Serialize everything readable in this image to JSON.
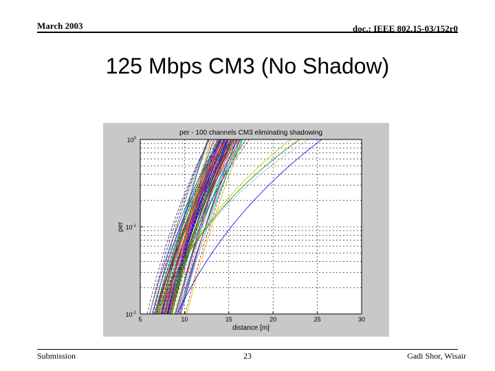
{
  "header": {
    "date": "March 2003",
    "doc_id": "doc.: IEEE 802.15-03/152r0"
  },
  "slide": {
    "title": "125 Mbps CM3 (No Shadow)"
  },
  "footer": {
    "left": "Submission",
    "page_number": "23",
    "author": "Gadi Shor, Wisair"
  },
  "colors": {
    "plot_bg": "#c8c8c8",
    "axes_bg": "#ffffff",
    "series_palette": [
      "#0000ff",
      "#008000",
      "#ff0000",
      "#00bfbf",
      "#bf00bf",
      "#bfbf00",
      "#404040"
    ]
  },
  "chart_data": {
    "type": "line",
    "title": "per - 100 channels CM3 eliminating shadowing",
    "xlabel": "distance [m]",
    "ylabel": "per",
    "x_scale": "linear",
    "y_scale": "log",
    "xlim": [
      5,
      30
    ],
    "ylim": [
      0.01,
      1
    ],
    "x_ticks": [
      "5",
      "10",
      "15",
      "20",
      "25",
      "30"
    ],
    "y_ticks": [
      {
        "base": "10",
        "exp": "0"
      },
      {
        "base": "10",
        "exp": "-1"
      },
      {
        "base": "10",
        "exp": "-2"
      }
    ],
    "grid": true,
    "num_channels": 100,
    "curve_model": "per = min(1, (distance / d_sat)^k), one curve per channel",
    "series_params": {
      "d_sat": [
        14.1,
        13.7,
        14.0,
        12.6,
        15.2,
        14.0,
        15.7,
        13.5,
        14.9,
        14.6,
        15.0,
        14.9,
        16.2,
        15.2,
        14.9,
        14.3,
        16.3,
        13.5,
        16.1,
        14.7,
        15.0,
        14.5,
        15.6,
        14.4,
        14.1,
        17.3,
        14.8,
        14.3,
        12.8,
        13.8,
        13.9,
        14.2,
        14.7,
        15.4,
        14.1,
        15.9,
        16.9,
        13.0,
        16.5,
        14.0,
        15.4,
        12.7,
        14.5,
        14.5,
        15.8,
        14.4,
        14.9,
        14.4,
        15.6,
        14.6,
        16.0,
        13.7,
        13.7,
        14.8,
        14.3,
        12.8,
        14.7,
        14.6,
        15.3,
        16.6,
        16.4,
        15.5,
        13.8,
        14.1,
        15.5,
        15.3,
        13.3,
        13.1,
        14.7,
        14.0,
        14.4,
        15.0,
        14.3,
        13.9,
        14.2,
        16.6,
        12.7,
        14.1,
        15.5,
        13.3,
        16.3,
        14.0,
        15.7,
        14.9,
        15.2,
        15.5,
        14.6,
        16.4,
        14.7,
        13.0,
        15.5,
        14.9,
        15.4,
        16.2,
        16.6,
        15.3,
        22.0,
        24.0,
        25.5,
        23.0
      ],
      "k": [
        7.6,
        6.8,
        7.7,
        8.5,
        6.9,
        9.4,
        6.5,
        6.7,
        6.6,
        6.4,
        5.6,
        7.2,
        5.5,
        6.5,
        8.3,
        6.0,
        9.6,
        10.3,
        5.2,
        9.0,
        9.4,
        7.0,
        6.8,
        8.6,
        5.8,
        5.6,
        6.7,
        9.0,
        6.2,
        8.6,
        9.1,
        7.0,
        10.3,
        6.8,
        6.7,
        9.1,
        6.3,
        6.4,
        8.5,
        8.5,
        7.4,
        8.6,
        6.3,
        8.1,
        7.2,
        7.7,
        10.3,
        7.5,
        5.4,
        7.7,
        7.9,
        8.2,
        8.6,
        6.7,
        7.2,
        5.8,
        6.4,
        8.1,
        6.2,
        7.9,
        5.7,
        6.9,
        7.2,
        5.8,
        6.1,
        7.7,
        8.4,
        9.0,
        6.4,
        5.5,
        8.4,
        8.2,
        5.7,
        6.2,
        8.1,
        9.6,
        6.9,
        8.7,
        7.3,
        9.1,
        6.5,
        8.5,
        7.1,
        5.9,
        7.2,
        7.8,
        6.0,
        7.6,
        6.9,
        10.3,
        7.2,
        7.5,
        8.7,
        8.5,
        6.6,
        8.7,
        4.0,
        3.6,
        4.5,
        3.8
      ]
    }
  }
}
